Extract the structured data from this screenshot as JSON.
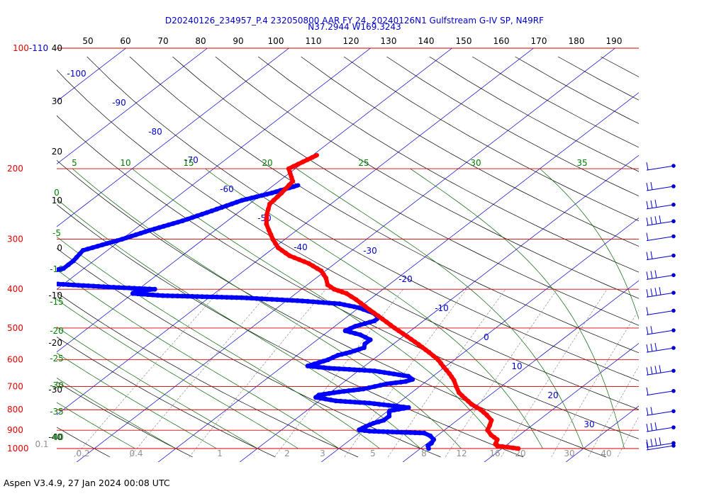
{
  "chart_data": {
    "type": "skew-t",
    "title_line1": "D20240126_234957_P.4 232050800 AAR FY 24, 20240126N1 Gulfstream G-IV SP, N49RF",
    "title_line2": "N37.2944 W169.3243",
    "footer": "Aspen V3.4.9, 27 Jan 2024  00:08 UTC",
    "pressure_labels": [
      "100-110",
      "200",
      "300",
      "400",
      "500",
      "600",
      "700",
      "800",
      "900",
      "1000"
    ],
    "top_scale_labels": [
      "50",
      "60",
      "70",
      "80",
      "90",
      "100",
      "110",
      "120",
      "130",
      "140",
      "150",
      "160",
      "170",
      "180",
      "190"
    ],
    "left_scale_labels": [
      "40",
      "30",
      "20",
      "10",
      "0",
      "-10",
      "-20",
      "-30",
      "-40"
    ],
    "isotherm_labels": [
      "-100",
      "-90",
      "-80",
      "-70",
      "-60",
      "-50",
      "-40",
      "-30",
      "-20",
      "-10",
      "0",
      "10",
      "20",
      "30"
    ],
    "dry_adiabat_labels": [
      "0",
      "-5",
      "-10",
      "-15",
      "-20",
      "-25",
      "-30",
      "-35",
      "-40"
    ],
    "moist_labels": [
      "5",
      "10",
      "15",
      "20",
      "25",
      "30",
      "35"
    ],
    "mixing_ratio_labels": [
      "0.1",
      "0.2",
      "0.4",
      "1",
      "2",
      "3",
      "5",
      "8",
      "12",
      "16",
      "20",
      "30",
      "40"
    ],
    "colors": {
      "isobar": "#d00000",
      "isotherm": "#0000cc",
      "dry_adiabat": "#000000",
      "moist_adiabat": "#006400",
      "mixing_ratio": "#909090",
      "temperature": "#ff0000",
      "dewpoint": "#0000ff",
      "wind_barb": "#0000cc"
    },
    "temperature_profile": [
      [
        1000,
        12
      ],
      [
        985,
        9
      ],
      [
        975,
        8.5
      ],
      [
        950,
        8
      ],
      [
        925,
        6.5
      ],
      [
        900,
        5.3
      ],
      [
        875,
        4.8
      ],
      [
        850,
        4.2
      ],
      [
        825,
        2.8
      ],
      [
        800,
        1.2
      ],
      [
        775,
        -0.8
      ],
      [
        750,
        -2.5
      ],
      [
        725,
        -4.2
      ],
      [
        700,
        -5.5
      ],
      [
        675,
        -6.8
      ],
      [
        650,
        -8.4
      ],
      [
        625,
        -10.2
      ],
      [
        600,
        -12
      ],
      [
        575,
        -14.3
      ],
      [
        550,
        -16.8
      ],
      [
        525,
        -19.5
      ],
      [
        500,
        -22.4
      ],
      [
        475,
        -25.3
      ],
      [
        450,
        -28.4
      ],
      [
        425,
        -31.6
      ],
      [
        410,
        -33.8
      ],
      [
        400,
        -36
      ],
      [
        390,
        -37.5
      ],
      [
        375,
        -38.8
      ],
      [
        360,
        -40.5
      ],
      [
        345,
        -43.2
      ],
      [
        330,
        -46.8
      ],
      [
        315,
        -49.5
      ],
      [
        300,
        -51.5
      ],
      [
        285,
        -53.4
      ],
      [
        275,
        -54.7
      ],
      [
        260,
        -56.2
      ],
      [
        245,
        -57.5
      ],
      [
        230,
        -57.8
      ],
      [
        215,
        -58.3
      ],
      [
        200,
        -60.8
      ],
      [
        185,
        -59.5
      ]
    ],
    "dewpoint_profile": [
      [
        1000,
        1
      ],
      [
        985,
        0.5
      ],
      [
        970,
        0.5
      ],
      [
        950,
        0.2
      ],
      [
        930,
        -0.8
      ],
      [
        915,
        -2
      ],
      [
        910,
        -5.5
      ],
      [
        905,
        -9
      ],
      [
        898,
        -10.5
      ],
      [
        880,
        -10.2
      ],
      [
        865,
        -9.8
      ],
      [
        850,
        -9
      ],
      [
        830,
        -9
      ],
      [
        815,
        -9.5
      ],
      [
        805,
        -9.8
      ],
      [
        790,
        -8
      ],
      [
        780,
        -10.8
      ],
      [
        770,
        -13.5
      ],
      [
        760,
        -18
      ],
      [
        745,
        -21
      ],
      [
        735,
        -21
      ],
      [
        722,
        -19
      ],
      [
        710,
        -16.5
      ],
      [
        700,
        -15.5
      ],
      [
        690,
        -14.5
      ],
      [
        680,
        -12.5
      ],
      [
        672,
        -12
      ],
      [
        660,
        -13
      ],
      [
        640,
        -18
      ],
      [
        630,
        -24
      ],
      [
        622,
        -27
      ],
      [
        615,
        -26.5
      ],
      [
        600,
        -25.5
      ],
      [
        585,
        -25
      ],
      [
        575,
        -24
      ],
      [
        560,
        -23
      ],
      [
        548,
        -23.5
      ],
      [
        535,
        -23.5
      ],
      [
        520,
        -25.5
      ],
      [
        508,
        -28
      ],
      [
        495,
        -27.5
      ],
      [
        480,
        -26
      ],
      [
        470,
        -26
      ],
      [
        458,
        -27.5
      ],
      [
        445,
        -30
      ],
      [
        435,
        -33
      ],
      [
        428,
        -38
      ],
      [
        420,
        -46
      ],
      [
        415,
        -56
      ],
      [
        410,
        -60
      ],
      [
        405,
        -60
      ],
      [
        400,
        -58
      ],
      [
        395,
        -64
      ],
      [
        385,
        -74
      ],
      [
        370,
        -75.5
      ],
      [
        355,
        -72.5
      ],
      [
        340,
        -72.5
      ],
      [
        320,
        -73
      ],
      [
        300,
        -70
      ],
      [
        285,
        -68
      ],
      [
        270,
        -65.5
      ],
      [
        255,
        -63.5
      ],
      [
        240,
        -61.5
      ],
      [
        230,
        -59
      ],
      [
        220,
        -57
      ]
    ],
    "wind_levels_hpa": [
      200,
      225,
      250,
      275,
      300,
      335,
      375,
      415,
      460,
      515,
      570,
      650,
      730,
      820,
      900,
      985,
      1000
    ]
  }
}
